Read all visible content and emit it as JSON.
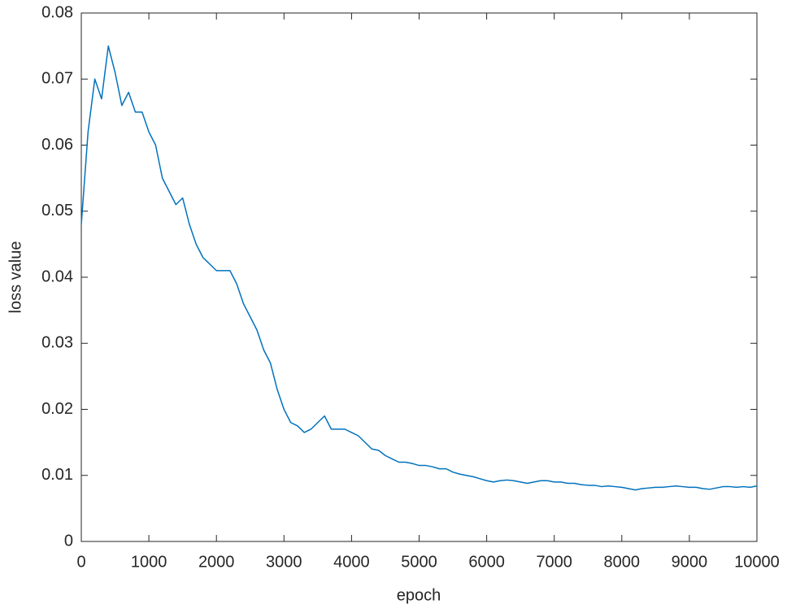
{
  "chart_data": {
    "type": "line",
    "x": [
      0,
      100,
      200,
      300,
      400,
      500,
      600,
      700,
      800,
      900,
      1000,
      1100,
      1200,
      1300,
      1400,
      1500,
      1600,
      1700,
      1800,
      1900,
      2000,
      2100,
      2200,
      2300,
      2400,
      2500,
      2600,
      2700,
      2800,
      2900,
      3000,
      3100,
      3200,
      3300,
      3400,
      3500,
      3600,
      3700,
      3800,
      3900,
      4000,
      4100,
      4200,
      4300,
      4400,
      4500,
      4600,
      4700,
      4800,
      4900,
      5000,
      5100,
      5200,
      5300,
      5400,
      5500,
      5600,
      5700,
      5800,
      5900,
      6000,
      6100,
      6200,
      6300,
      6400,
      6500,
      6600,
      6700,
      6800,
      6900,
      7000,
      7100,
      7200,
      7300,
      7400,
      7500,
      7600,
      7700,
      7800,
      7900,
      8000,
      8100,
      8200,
      8300,
      8400,
      8500,
      8600,
      8700,
      8800,
      8900,
      9000,
      9100,
      9200,
      9300,
      9400,
      9500,
      9600,
      9700,
      9800,
      9900,
      10000
    ],
    "values": [
      0.048,
      0.062,
      0.07,
      0.067,
      0.075,
      0.071,
      0.066,
      0.068,
      0.065,
      0.065,
      0.062,
      0.06,
      0.055,
      0.053,
      0.051,
      0.052,
      0.048,
      0.045,
      0.043,
      0.042,
      0.041,
      0.041,
      0.041,
      0.039,
      0.036,
      0.034,
      0.032,
      0.029,
      0.027,
      0.023,
      0.02,
      0.018,
      0.0175,
      0.0165,
      0.017,
      0.018,
      0.019,
      0.017,
      0.017,
      0.017,
      0.0165,
      0.016,
      0.015,
      0.014,
      0.0138,
      0.013,
      0.0125,
      0.012,
      0.012,
      0.0118,
      0.0115,
      0.0115,
      0.0113,
      0.011,
      0.011,
      0.0105,
      0.0102,
      0.01,
      0.0098,
      0.0095,
      0.0092,
      0.009,
      0.0092,
      0.0093,
      0.0092,
      0.009,
      0.0088,
      0.009,
      0.0092,
      0.0092,
      0.009,
      0.009,
      0.0088,
      0.0088,
      0.0086,
      0.0085,
      0.0085,
      0.0083,
      0.0084,
      0.0083,
      0.0082,
      0.008,
      0.0078,
      0.008,
      0.0081,
      0.0082,
      0.0082,
      0.0083,
      0.0084,
      0.0083,
      0.0082,
      0.0082,
      0.008,
      0.0079,
      0.0081,
      0.0083,
      0.0083,
      0.0082,
      0.0083,
      0.0082,
      0.0084
    ],
    "color": "#0072bd",
    "xlabel": "epoch",
    "ylabel": "loss value",
    "xlim": [
      0,
      10000
    ],
    "xticks": [
      0,
      1000,
      2000,
      3000,
      4000,
      5000,
      6000,
      7000,
      8000,
      9000,
      10000
    ],
    "ylim": [
      0,
      0.08
    ],
    "yticks": [
      0,
      0.01,
      0.02,
      0.03,
      0.04,
      0.05,
      0.06,
      0.07,
      0.08
    ],
    "grid": false
  }
}
